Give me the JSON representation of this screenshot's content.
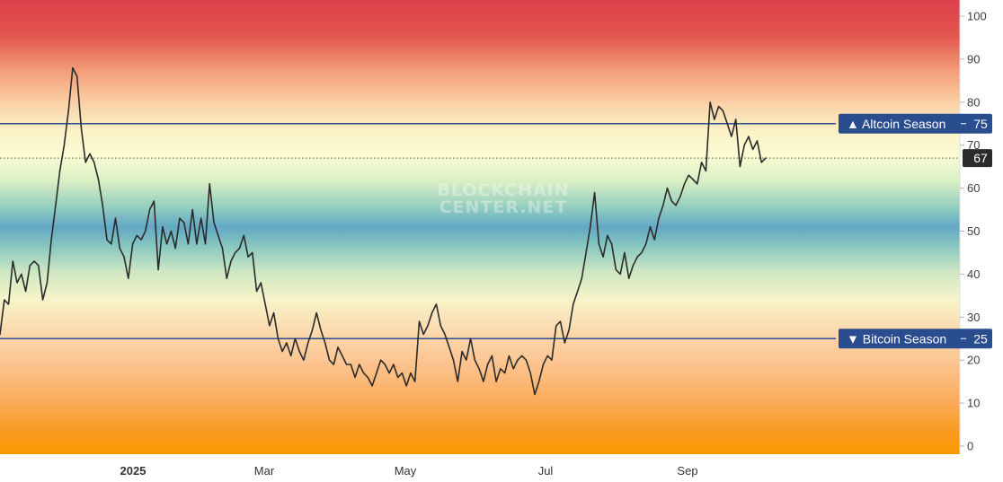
{
  "chart_data": {
    "type": "line",
    "title": "",
    "xlabel": "",
    "ylabel": "",
    "ylim": [
      0,
      100
    ],
    "y_ticks": [
      "0",
      "10",
      "20",
      "30",
      "40",
      "50",
      "60",
      "70",
      "80",
      "90",
      "100"
    ],
    "x_ticks": [
      "2025",
      "Mar",
      "May",
      "Jul",
      "Sep"
    ],
    "watermark": [
      "BLOCKCHAIN",
      "CENTER.NET"
    ],
    "grid": false,
    "background": "vertical color gradient from orange at 0 to yellow, green, blue around 50, and red at 100",
    "series": [
      {
        "color": "#2b2b2b",
        "x_range": [
          "2024-11",
          "2025-10"
        ],
        "values": [
          26,
          34,
          33,
          43,
          38,
          40,
          36,
          42,
          43,
          42,
          34,
          38,
          48,
          56,
          64,
          70,
          78,
          88,
          86,
          74,
          66,
          68,
          66,
          62,
          56,
          48,
          47,
          53,
          46,
          44,
          39,
          47,
          49,
          48,
          50,
          55,
          57,
          41,
          51,
          47,
          50,
          46,
          53,
          52,
          47,
          55,
          47,
          53,
          47,
          61,
          52,
          49,
          46,
          39,
          43,
          45,
          46,
          49,
          44,
          45,
          36,
          38,
          33,
          28,
          31,
          25,
          22,
          24,
          21,
          25,
          22,
          20,
          24,
          27,
          31,
          27,
          24,
          20,
          19,
          23,
          21,
          19,
          19,
          16,
          19,
          17,
          16,
          14,
          17,
          20,
          19,
          17,
          19,
          16,
          17,
          14,
          17,
          15,
          29,
          26,
          28,
          31,
          33,
          28,
          26,
          23,
          20,
          15,
          22,
          20,
          25,
          20,
          18,
          15,
          19,
          21,
          15,
          18,
          17,
          21,
          18,
          20,
          21,
          20,
          17,
          12,
          15,
          19,
          21,
          20,
          28,
          29,
          24,
          27,
          33,
          36,
          39,
          45,
          51,
          59,
          47,
          44,
          49,
          47,
          41,
          40,
          45,
          39,
          42,
          44,
          45,
          47,
          51,
          48,
          53,
          56,
          60,
          57,
          56,
          58,
          61,
          63,
          62,
          61,
          66,
          64,
          80,
          76,
          79,
          78,
          75,
          72,
          76,
          65,
          70,
          72,
          69,
          71,
          66,
          67
        ],
        "last_value": "67"
      }
    ],
    "reference_lines": [
      {
        "label": "▲ Altcoin Season",
        "value": "75",
        "y": 75,
        "color": "#2a4d8f"
      },
      {
        "label": "▼ Bitcoin Season",
        "value": "25",
        "y": 25,
        "color": "#2a4d8f"
      }
    ],
    "current_value_label": {
      "value": "67",
      "y": 67
    }
  }
}
